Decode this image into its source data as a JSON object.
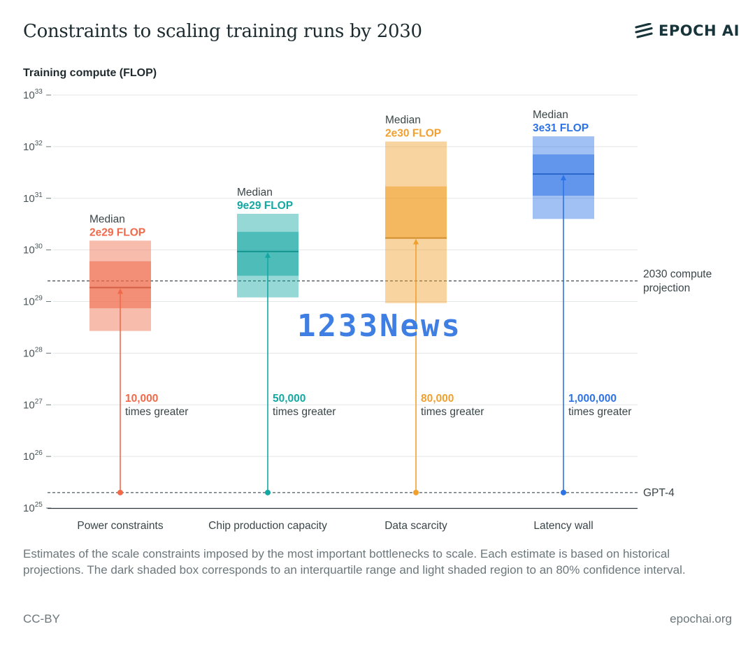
{
  "title": "Constraints to scaling training runs by 2030",
  "brand": {
    "name": "EPOCH AI",
    "logo_icon": "epoch-stripes-icon"
  },
  "caption": "Estimates of the scale constraints imposed by the most important bottlenecks to scale. Each estimate is based on historical projections. The dark shaded box corresponds to an interquartile range and light shaded region to an 80% confidence interval.",
  "license": "CC-BY",
  "site": "epochai.org",
  "watermark": "1233News",
  "chart_data": {
    "type": "box",
    "title": "Constraints to scaling training runs by 2030",
    "ylabel": "Training compute (FLOP)",
    "yscale": "log10",
    "ylim_exp": [
      25,
      33
    ],
    "yticks": [
      {
        "base": "10",
        "exp": "25"
      },
      {
        "base": "10",
        "exp": "26"
      },
      {
        "base": "10",
        "exp": "27"
      },
      {
        "base": "10",
        "exp": "28"
      },
      {
        "base": "10",
        "exp": "29"
      },
      {
        "base": "10",
        "exp": "30"
      },
      {
        "base": "10",
        "exp": "31"
      },
      {
        "base": "10",
        "exp": "32"
      },
      {
        "base": "10",
        "exp": "33"
      }
    ],
    "reference_lines": [
      {
        "name": "gpt4",
        "label": "GPT-4",
        "value_exp": 25.3
      },
      {
        "name": "projection-2030",
        "label": "2030 compute projection",
        "label_lines": [
          "2030 compute",
          "projection"
        ],
        "value_exp": 29.4
      }
    ],
    "categories": [
      {
        "name": "Power constraints",
        "color": "#f06a4a",
        "median_label": "Median",
        "median_value": "2e29 FLOP",
        "median_exp": 29.27,
        "p10_exp": 28.43,
        "q1_exp": 28.87,
        "q3_exp": 29.78,
        "p90_exp": 30.18,
        "times_value": "10,000",
        "times_text": "times greater"
      },
      {
        "name": "Chip production capacity",
        "color": "#14a8a4",
        "median_label": "Median",
        "median_value": "9e29 FLOP",
        "median_exp": 29.97,
        "p10_exp": 29.08,
        "q1_exp": 29.5,
        "q3_exp": 30.35,
        "p90_exp": 30.7,
        "times_value": "50,000",
        "times_text": "times greater"
      },
      {
        "name": "Data scarcity",
        "color": "#f0a02e",
        "median_label": "Median",
        "median_value": "2e30 FLOP",
        "median_exp": 30.23,
        "p10_exp": 28.97,
        "q1_exp": 30.23,
        "q3_exp": 31.23,
        "p90_exp": 32.1,
        "times_value": "80,000",
        "times_text": "times greater"
      },
      {
        "name": "Latency wall",
        "color": "#2e73e6",
        "median_label": "Median",
        "median_value": "3e31 FLOP",
        "median_exp": 31.47,
        "p10_exp": 30.6,
        "q1_exp": 31.05,
        "q3_exp": 31.85,
        "p90_exp": 32.2,
        "times_value": "1,000,000",
        "times_text": "times greater"
      }
    ]
  }
}
